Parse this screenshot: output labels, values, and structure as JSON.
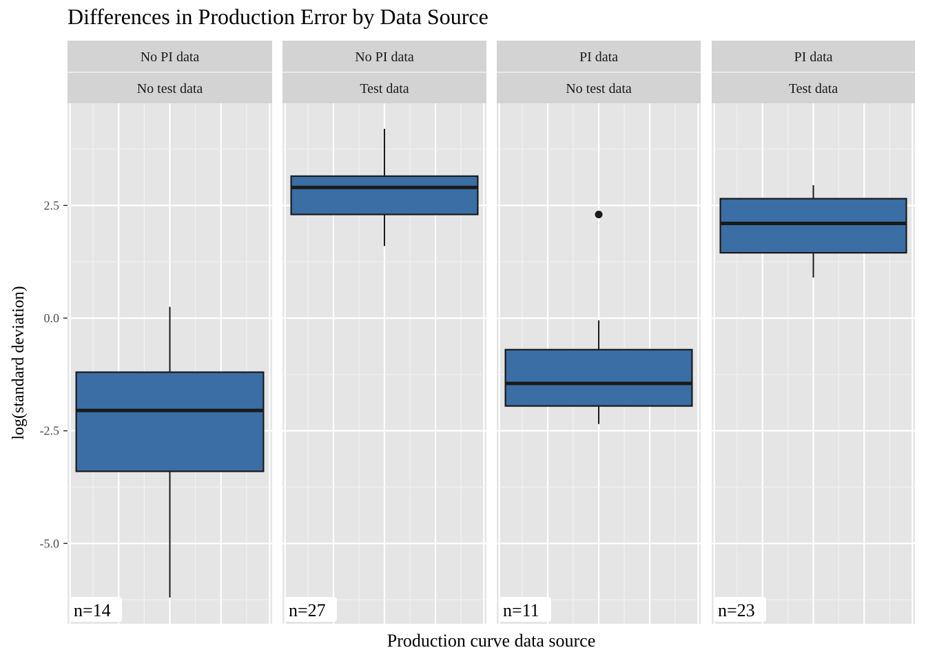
{
  "chart_data": {
    "type": "boxplot",
    "title": "Differences in Production Error by Data Source",
    "xlabel": "Production curve data source",
    "ylabel": "log(standard deviation)",
    "ylim": [
      -6.6,
      4.9
    ],
    "yticks": [
      2.5,
      0.0,
      -2.5,
      -5.0
    ],
    "ytick_labels": [
      "2.5",
      "0.0",
      "-2.5",
      "-5.0"
    ],
    "grid": true,
    "fill_color": "#3a6ea5",
    "panel_background": "#e5e5e5",
    "strip_background": "#d3d3d3",
    "facets": [
      {
        "strip_top": "No PI data",
        "strip_bottom": "No test data",
        "n_label": "n=14",
        "stats": {
          "whisker_low": -6.2,
          "q1": -3.4,
          "median": -2.05,
          "q3": -1.2,
          "whisker_high": 0.25
        },
        "outliers": []
      },
      {
        "strip_top": "No PI data",
        "strip_bottom": "Test data",
        "n_label": "n=27",
        "stats": {
          "whisker_low": 1.6,
          "q1": 2.3,
          "median": 2.9,
          "q3": 3.15,
          "whisker_high": 4.2
        },
        "outliers": []
      },
      {
        "strip_top": "PI data",
        "strip_bottom": "No test data",
        "n_label": "n=11",
        "stats": {
          "whisker_low": -2.35,
          "q1": -1.95,
          "median": -1.45,
          "q3": -0.7,
          "whisker_high": -0.05
        },
        "outliers": [
          2.3
        ]
      },
      {
        "strip_top": "PI data",
        "strip_bottom": "Test data",
        "n_label": "n=23",
        "stats": {
          "whisker_low": 0.9,
          "q1": 1.45,
          "median": 2.1,
          "q3": 2.65,
          "whisker_high": 2.95
        },
        "outliers": []
      }
    ]
  }
}
